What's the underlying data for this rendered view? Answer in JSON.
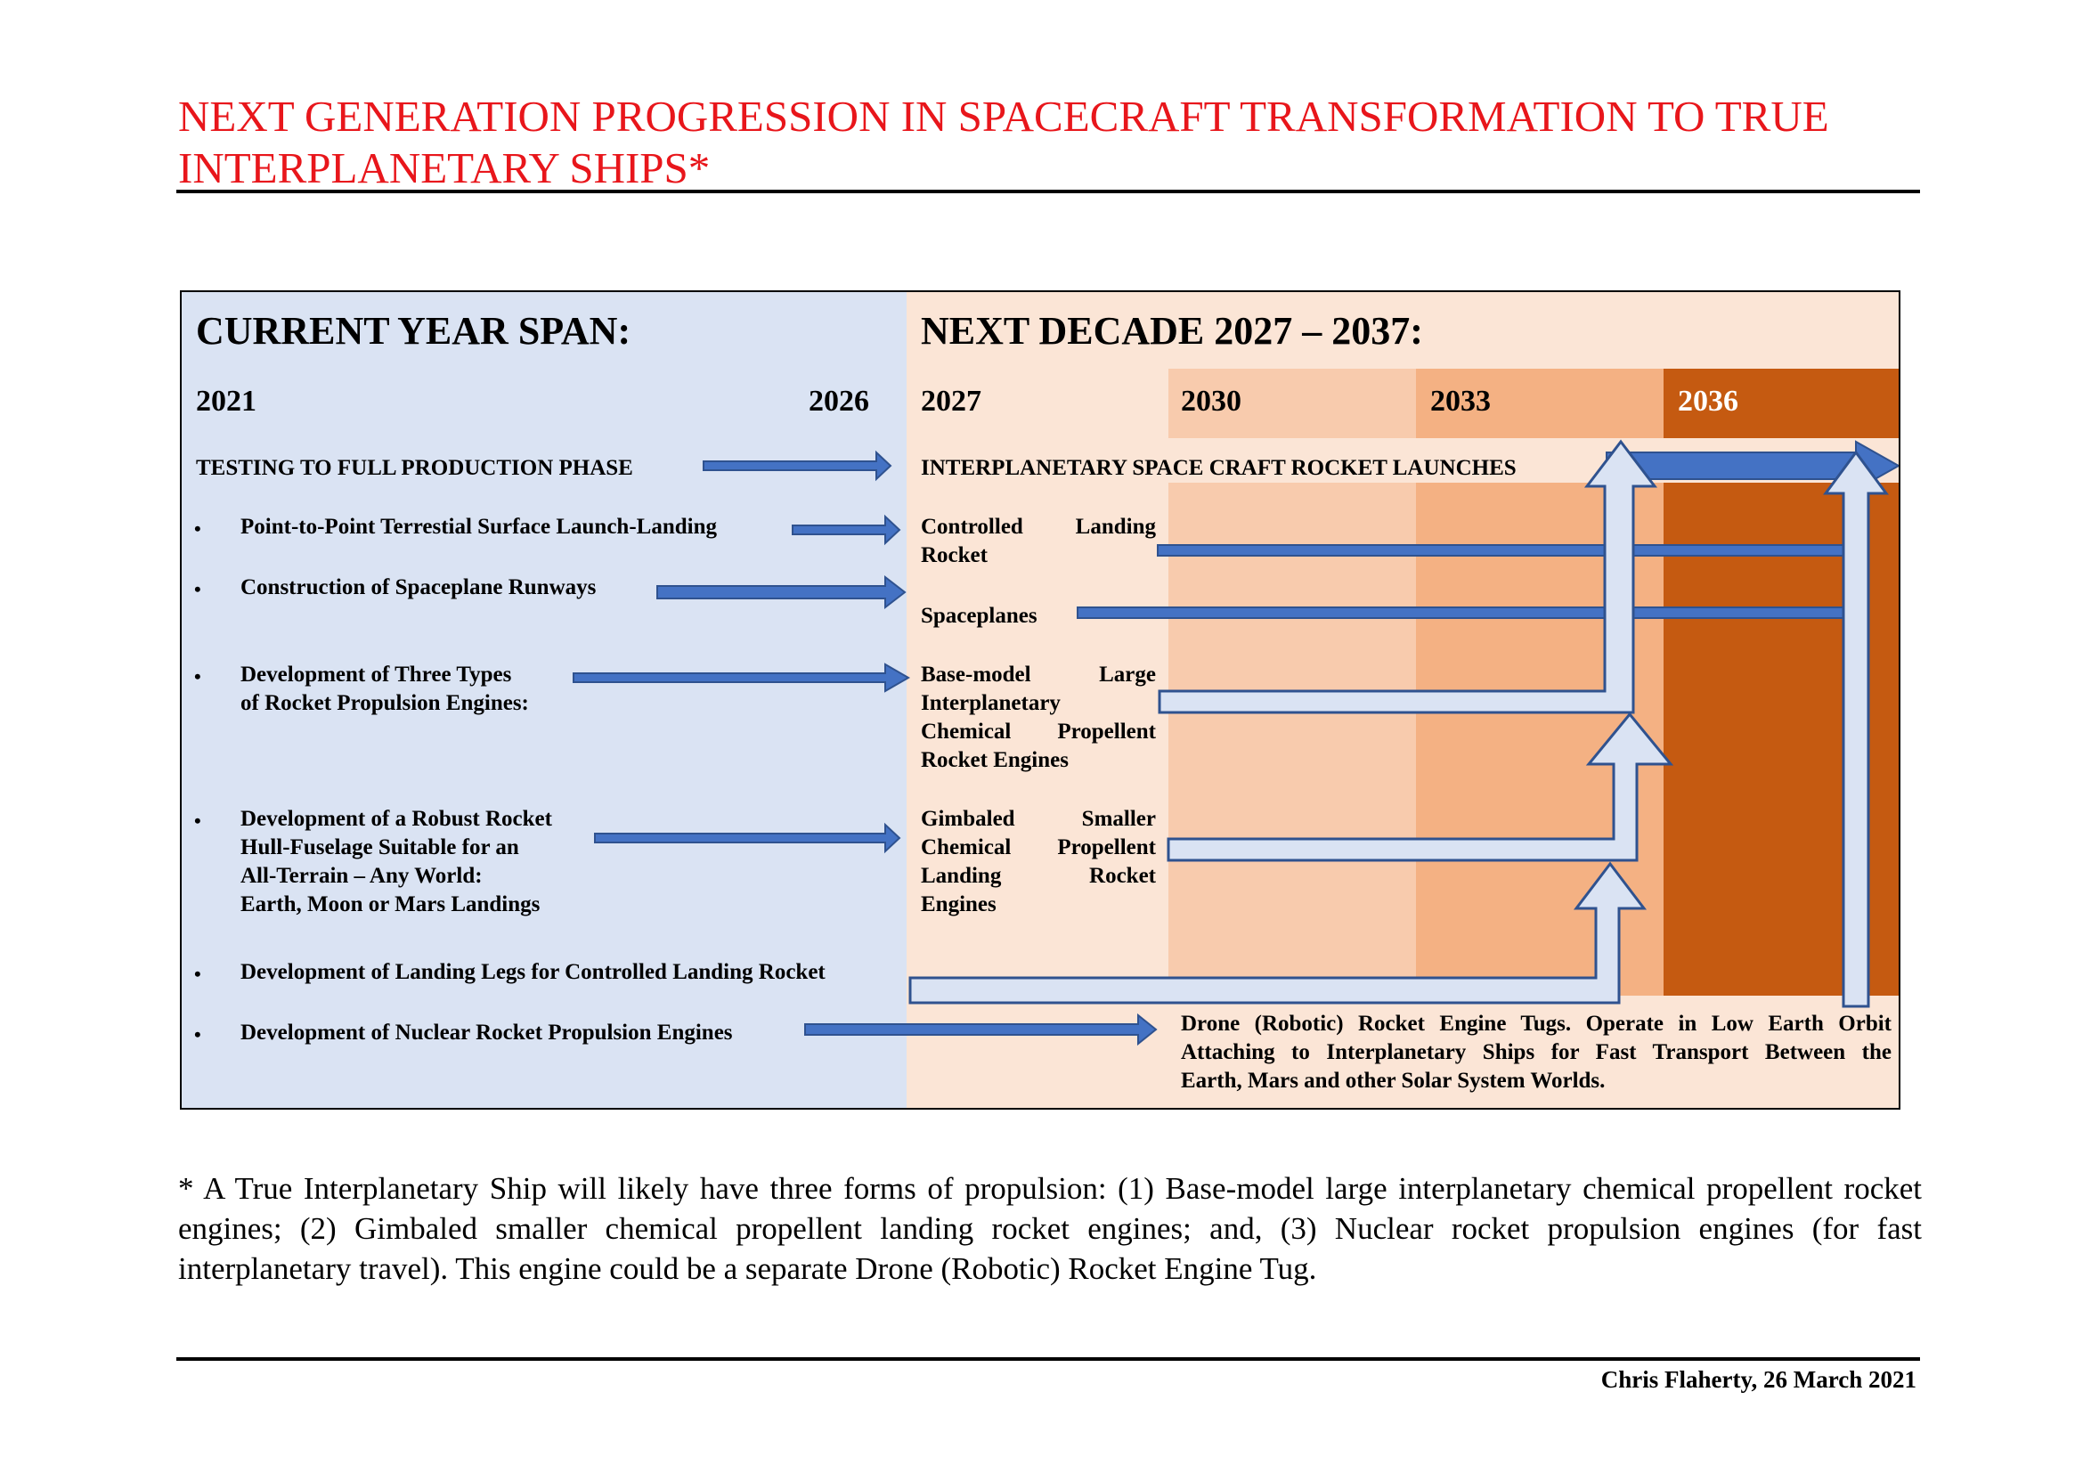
{
  "title": "NEXT GENERATION PROGRESSION IN SPACECRAFT TRANSFORMATION TO TRUE INTERPLANETARY SHIPS*",
  "current": {
    "header": "CURRENT YEAR SPAN:",
    "start_year": "2021",
    "end_year": "2026",
    "phase": "TESTING TO FULL PRODUCTION PHASE",
    "items": [
      "Point-to-Point Terrestial Surface Launch-Landing",
      "Construction of Spaceplane Runways",
      "Development of Three Types of Rocket Propulsion Engines:",
      "Development of a Robust Rocket Hull-Fuselage Suitable for an All-Terrain – Any World: Earth, Moon or Mars Landings",
      "Development of Landing Legs for Controlled Landing Rocket",
      "Development of Nuclear Rocket Propulsion Engines"
    ],
    "item_lines": {
      "engines": [
        "Development of Three Types",
        "of Rocket Propulsion Engines:"
      ],
      "hull": [
        "Development of a Robust Rocket",
        "Hull-Fuselage Suitable for an",
        "All-Terrain – Any World:",
        "Earth, Moon or Mars Landings"
      ]
    },
    "bullet": "•"
  },
  "next": {
    "header": "NEXT DECADE 2027 – 2037:",
    "years": [
      "2027",
      "2030",
      "2033",
      "2036"
    ],
    "phase": "INTERPLANETARY SPACE CRAFT ROCKET LAUNCHES",
    "outcomes": {
      "controlled_landing": [
        "Controlled Landing",
        "Rocket"
      ],
      "spaceplanes": "Spaceplanes",
      "base_model": [
        "Base-model Large",
        "Interplanetary",
        "Chemical Propellent",
        "Rocket Engines"
      ],
      "gimbaled": [
        "Gimbaled Smaller",
        "Chemical Propellent",
        "Landing Rocket",
        "Engines"
      ],
      "drone": [
        "Drone (Robotic) Rocket Engine Tugs. Operate in Low Earth Orbit",
        "Attaching to Interplanetary Ships for Fast Transport Between the",
        "Earth, Mars and other Solar System Worlds."
      ]
    }
  },
  "footnote": "* A True Interplanetary Ship will likely have three forms of propulsion: (1) Base-model large interplanetary chemical propellent rocket engines; (2) Gimbaled smaller chemical propellent landing rocket engines; and, (3) Nuclear rocket propulsion engines (for fast interplanetary travel). This engine could be a separate Drone (Robotic) Rocket Engine Tug.",
  "credit": "Chris Flaherty, 26 March 2021",
  "colors": {
    "title": "#e8161b",
    "current_bg": "#dae3f3",
    "next_bg": "#fbe5d6",
    "band_2030": "#f8cbad",
    "band_2033": "#f4b183",
    "band_2036": "#c55a11",
    "arrow_blue": "#4472c4",
    "arrow_light": "#dae3f3"
  }
}
